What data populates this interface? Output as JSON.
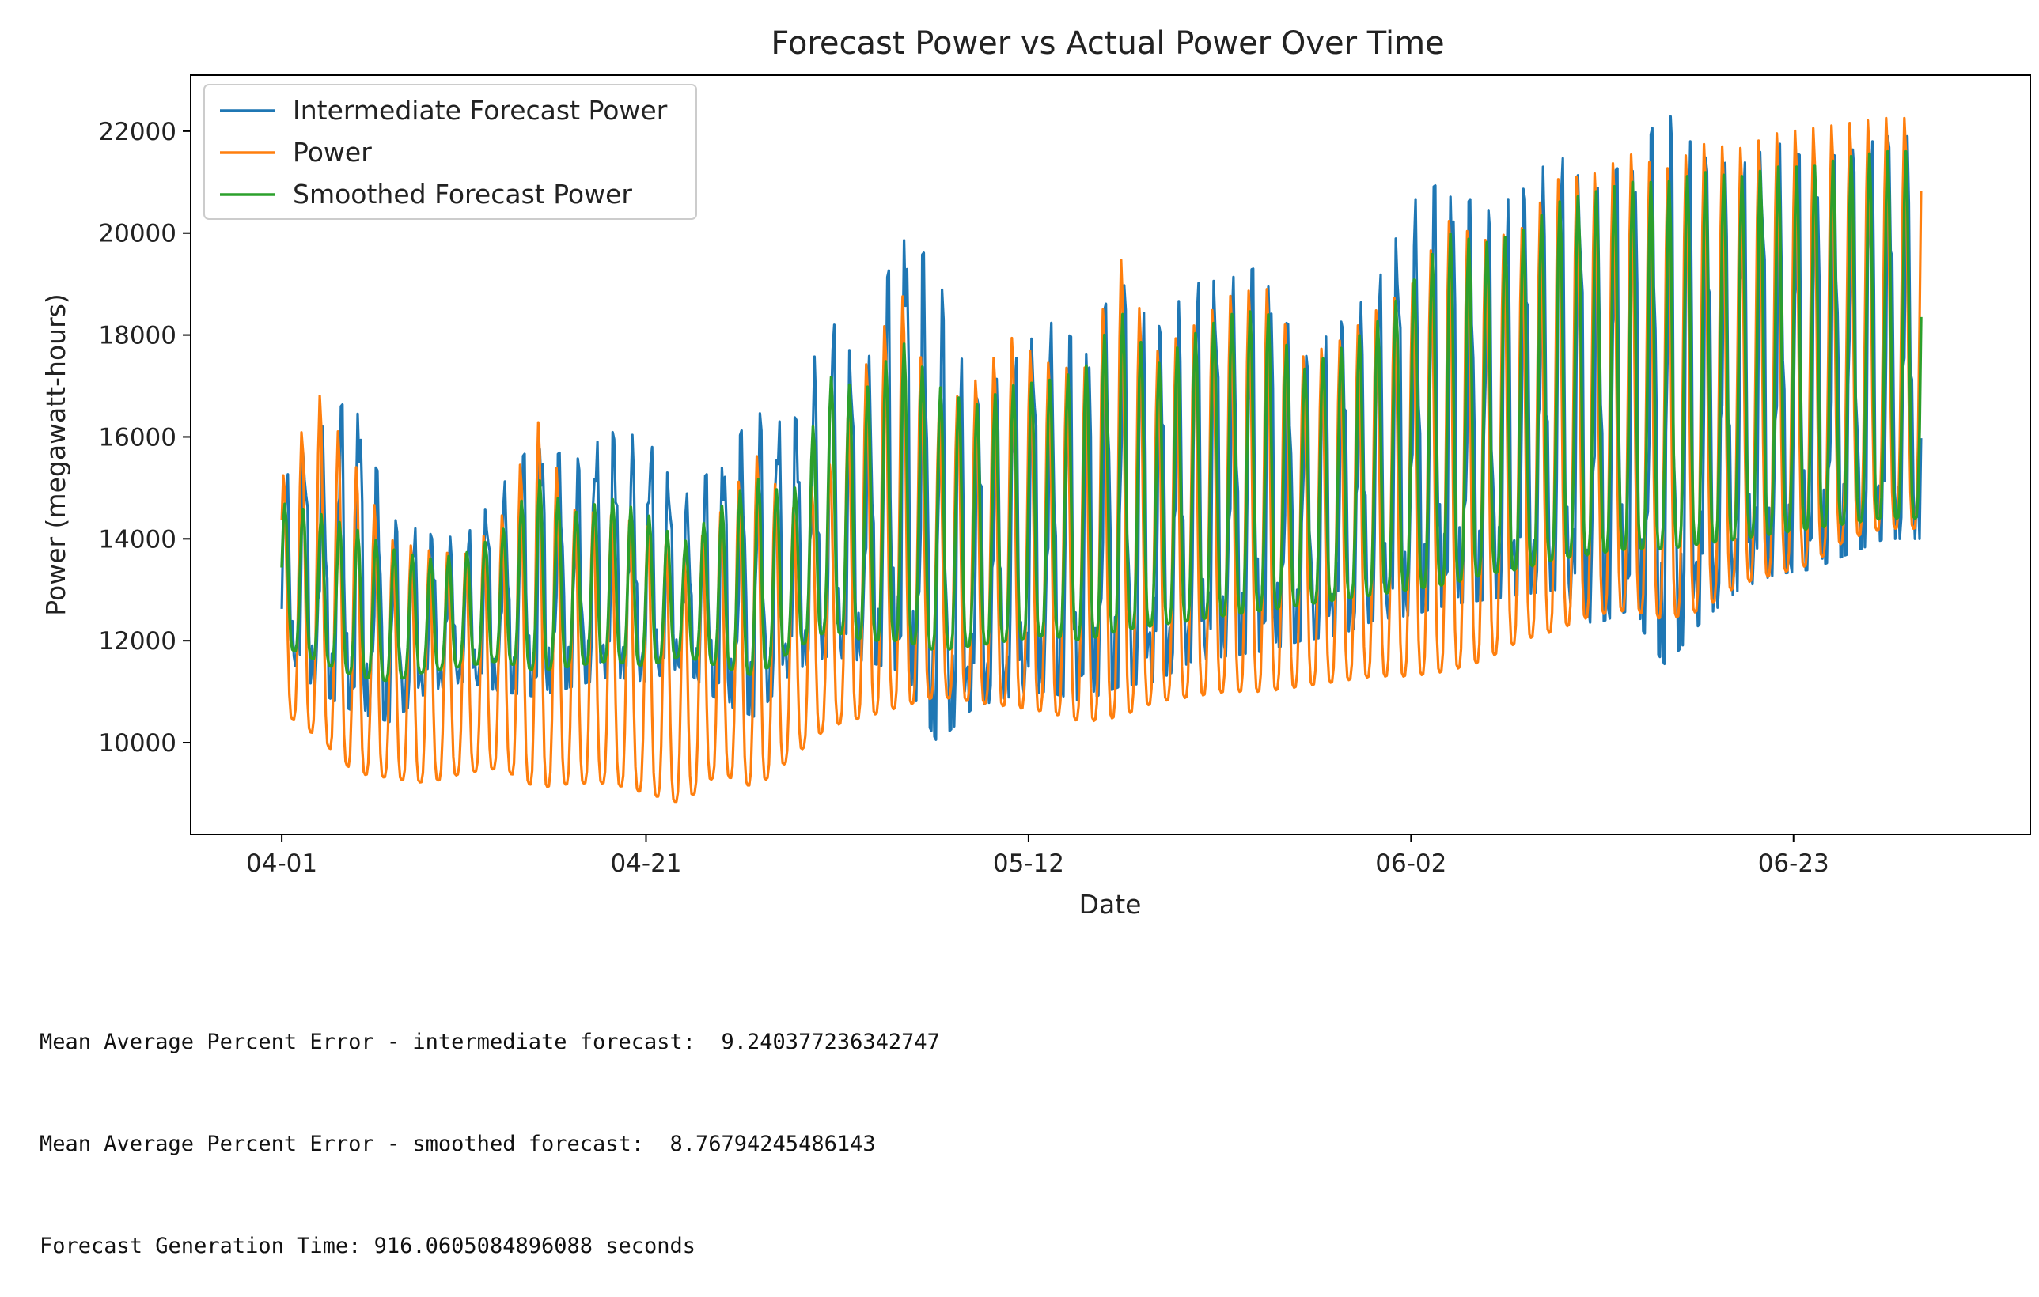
{
  "chart_data": {
    "type": "line",
    "title": "Forecast Power vs Actual Power Over Time",
    "xlabel": "Date",
    "ylabel": "Power (megawatt-hours)",
    "x_range": [
      "2025-03-27",
      "2025-07-06"
    ],
    "x_tick_labels": [
      "04-01",
      "04-21",
      "05-12",
      "06-02",
      "06-23"
    ],
    "x_tick_dates": [
      "2025-04-01",
      "2025-04-21",
      "2025-05-12",
      "2025-06-02",
      "2025-06-23"
    ],
    "ylim": [
      8200,
      23100
    ],
    "y_ticks": [
      10000,
      12000,
      14000,
      16000,
      18000,
      20000,
      22000
    ],
    "grid": false,
    "legend_position": "top-left",
    "series": [
      {
        "name": "Intermediate Forecast Power",
        "color": "#1f77b4",
        "x": [
          "2025-04-01",
          "2025-04-03",
          "2025-04-05",
          "2025-04-07",
          "2025-04-09",
          "2025-04-11",
          "2025-04-13",
          "2025-04-15",
          "2025-04-17",
          "2025-04-19",
          "2025-04-21",
          "2025-04-23",
          "2025-04-25",
          "2025-04-27",
          "2025-04-29",
          "2025-05-01",
          "2025-05-03",
          "2025-05-05",
          "2025-05-07",
          "2025-05-09",
          "2025-05-11",
          "2025-05-13",
          "2025-05-15",
          "2025-05-17",
          "2025-05-19",
          "2025-05-21",
          "2025-05-23",
          "2025-05-25",
          "2025-05-27",
          "2025-05-29",
          "2025-05-31",
          "2025-06-02",
          "2025-06-04",
          "2025-06-06",
          "2025-06-08",
          "2025-06-10",
          "2025-06-12",
          "2025-06-14",
          "2025-06-16",
          "2025-06-18",
          "2025-06-20",
          "2025-06-22",
          "2025-06-24",
          "2025-06-26",
          "2025-06-28"
        ],
        "high": [
          15100,
          16100,
          16900,
          14400,
          14100,
          14000,
          15000,
          16000,
          15500,
          16100,
          16000,
          14800,
          15500,
          16500,
          16200,
          18400,
          17200,
          20300,
          19200,
          16700,
          17400,
          18300,
          17800,
          19100,
          18100,
          19000,
          19100,
          19400,
          17500,
          18200,
          18900,
          20600,
          21100,
          20400,
          20800,
          21600,
          20800,
          21500,
          22400,
          21500,
          21300,
          21800,
          21400,
          21600,
          21900
        ],
        "low": [
          11800,
          11000,
          10600,
          10400,
          11000,
          11200,
          11000,
          10900,
          11100,
          11300,
          11200,
          11500,
          10800,
          10500,
          11400,
          11700,
          11600,
          11400,
          10000,
          10700,
          10900,
          11000,
          10800,
          11100,
          11200,
          11600,
          11700,
          11800,
          12000,
          12100,
          12400,
          12500,
          12700,
          12800,
          12900,
          13000,
          12300,
          12600,
          11500,
          12400,
          13000,
          13300,
          13400,
          13700,
          14000
        ]
      },
      {
        "name": "Power",
        "color": "#ff7f0e",
        "x": [
          "2025-04-01",
          "2025-04-03",
          "2025-04-05",
          "2025-04-07",
          "2025-04-09",
          "2025-04-11",
          "2025-04-13",
          "2025-04-15",
          "2025-04-17",
          "2025-04-19",
          "2025-04-21",
          "2025-04-23",
          "2025-04-25",
          "2025-04-27",
          "2025-04-29",
          "2025-05-01",
          "2025-05-03",
          "2025-05-05",
          "2025-05-07",
          "2025-05-09",
          "2025-05-11",
          "2025-05-13",
          "2025-05-15",
          "2025-05-17",
          "2025-05-19",
          "2025-05-21",
          "2025-05-23",
          "2025-05-25",
          "2025-05-27",
          "2025-05-29",
          "2025-05-31",
          "2025-06-02",
          "2025-06-04",
          "2025-06-06",
          "2025-06-08",
          "2025-06-10",
          "2025-06-12",
          "2025-06-14",
          "2025-06-16",
          "2025-06-18",
          "2025-06-20",
          "2025-06-22",
          "2025-06-24",
          "2025-06-26",
          "2025-06-28"
        ],
        "high": [
          15200,
          16900,
          15500,
          14000,
          13800,
          13700,
          14400,
          16400,
          14600,
          14500,
          14300,
          13600,
          14500,
          15700,
          14600,
          15400,
          17400,
          18900,
          16500,
          17100,
          18000,
          17500,
          17300,
          19600,
          17700,
          18200,
          18800,
          19000,
          17600,
          17900,
          18500,
          19000,
          20300,
          19900,
          20100,
          21100,
          21200,
          21600,
          21300,
          21800,
          21700,
          22000,
          22100,
          22200,
          22300
        ],
        "low": [
          10600,
          10100,
          9400,
          9300,
          9200,
          9400,
          9500,
          9100,
          9200,
          9200,
          9000,
          8800,
          9400,
          9100,
          9700,
          10300,
          10500,
          10700,
          10900,
          10800,
          10700,
          10600,
          10400,
          10500,
          10800,
          10900,
          11000,
          11000,
          11100,
          11200,
          11300,
          11300,
          11400,
          11600,
          12000,
          12200,
          12500,
          12600,
          12400,
          12600,
          13100,
          13300,
          13500,
          14000,
          14200
        ]
      },
      {
        "name": "Smoothed Forecast Power",
        "color": "#2ca02c",
        "x": [
          "2025-04-01",
          "2025-04-03",
          "2025-04-05",
          "2025-04-07",
          "2025-04-09",
          "2025-04-11",
          "2025-04-13",
          "2025-04-15",
          "2025-04-17",
          "2025-04-19",
          "2025-04-21",
          "2025-04-23",
          "2025-04-25",
          "2025-04-27",
          "2025-04-29",
          "2025-05-01",
          "2025-05-03",
          "2025-05-05",
          "2025-05-07",
          "2025-05-09",
          "2025-05-11",
          "2025-05-13",
          "2025-05-15",
          "2025-05-17",
          "2025-05-19",
          "2025-05-21",
          "2025-05-23",
          "2025-05-25",
          "2025-05-27",
          "2025-05-29",
          "2025-05-31",
          "2025-06-02",
          "2025-06-04",
          "2025-06-06",
          "2025-06-08",
          "2025-06-10",
          "2025-06-12",
          "2025-06-14",
          "2025-06-16",
          "2025-06-18",
          "2025-06-20",
          "2025-06-22",
          "2025-06-24",
          "2025-06-26",
          "2025-06-28"
        ],
        "high": [
          14700,
          14500,
          14200,
          13800,
          13600,
          13700,
          14100,
          15200,
          14500,
          14800,
          14500,
          13900,
          14600,
          15200,
          14800,
          17200,
          16900,
          17900,
          17000,
          16600,
          17000,
          17100,
          17300,
          18500,
          17400,
          18000,
          18400,
          18500,
          17300,
          17700,
          18200,
          19000,
          20000,
          19800,
          20000,
          20600,
          20800,
          21000,
          21000,
          21200,
          21100,
          21300,
          21300,
          21500,
          21600
        ],
        "low": [
          11900,
          11600,
          11300,
          11200,
          11400,
          11500,
          11600,
          11400,
          11500,
          11600,
          11500,
          11700,
          11500,
          11300,
          11800,
          12200,
          12000,
          12000,
          11800,
          11900,
          12000,
          12100,
          12000,
          12200,
          12300,
          12400,
          12500,
          12600,
          12700,
          12800,
          12900,
          13000,
          13100,
          13300,
          13400,
          13600,
          13700,
          13800,
          13800,
          13900,
          14000,
          14100,
          14200,
          14300,
          14400
        ]
      }
    ]
  },
  "output": {
    "lines": [
      "Mean Average Percent Error - intermediate forecast:  9.240377236342747",
      "Mean Average Percent Error - smoothed forecast:  8.76794245486143",
      "Forecast Generation Time: 916.0605084896088 seconds"
    ]
  }
}
